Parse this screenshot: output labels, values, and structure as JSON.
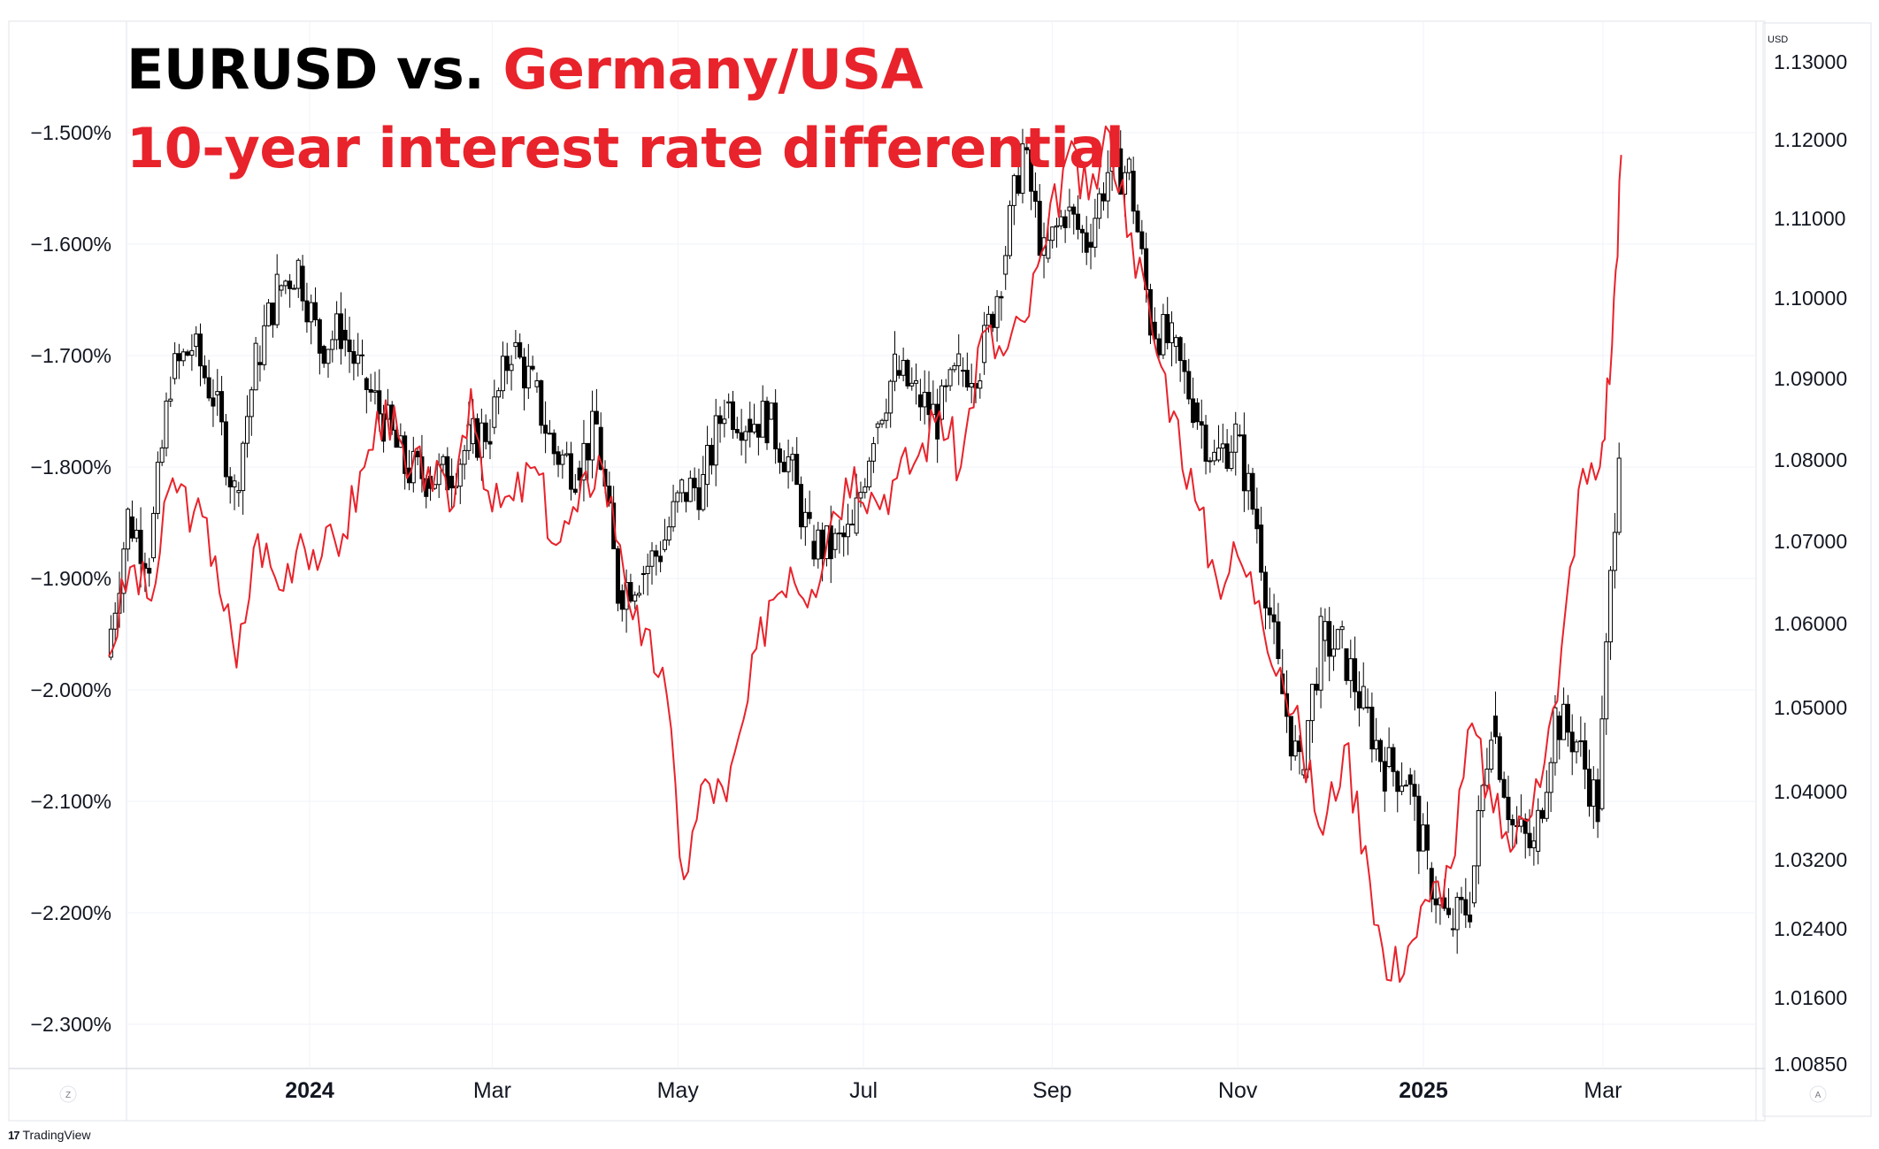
{
  "title": {
    "part1": "EURUSD vs. ",
    "part2": "Germany/USA",
    "line2": "10-year interest rate differential"
  },
  "brand": "TradingView",
  "chart_data": {
    "type": "line",
    "currency_label": "USD",
    "corner_labels": {
      "left": "Z",
      "right": "A"
    },
    "x_ticks": [
      {
        "label": "2024",
        "date": "2024-01-01",
        "bold": true
      },
      {
        "label": "Mar",
        "date": "2024-03-01",
        "bold": false
      },
      {
        "label": "May",
        "date": "2024-05-01",
        "bold": false
      },
      {
        "label": "Jul",
        "date": "2024-07-01",
        "bold": false
      },
      {
        "label": "Sep",
        "date": "2024-09-01",
        "bold": false
      },
      {
        "label": "Nov",
        "date": "2024-11-01",
        "bold": false
      },
      {
        "label": "2025",
        "date": "2025-01-01",
        "bold": true
      },
      {
        "label": "Mar",
        "date": "2025-03-01",
        "bold": false
      }
    ],
    "left_axis": {
      "ticks": [
        "−1.500%",
        "−1.600%",
        "−1.700%",
        "−1.800%",
        "−1.900%",
        "−2.000%",
        "−2.100%",
        "−2.200%",
        "−2.300%"
      ],
      "values": [
        -1.5,
        -1.6,
        -1.7,
        -1.8,
        -1.9,
        -2.0,
        -2.1,
        -2.2,
        -2.3
      ]
    },
    "right_axis": {
      "ticks": [
        "1.13000",
        "1.12000",
        "1.11000",
        "1.10000",
        "1.09000",
        "1.08000",
        "1.07000",
        "1.06000",
        "1.05000",
        "1.04000",
        "1.03200",
        "1.02400",
        "1.01600",
        "1.00850"
      ],
      "values": [
        1.13,
        1.12,
        1.11,
        1.1,
        1.09,
        1.08,
        1.07,
        1.06,
        1.05,
        1.04,
        1.032,
        1.024,
        1.016,
        1.0085
      ]
    },
    "series": [
      {
        "axis": "right",
        "style": "candlestick",
        "color": "#000000",
        "points": [
          [
            "2023-10-27",
            1.056
          ],
          [
            "2023-11-03",
            1.073
          ],
          [
            "2023-11-10",
            1.068
          ],
          [
            "2023-11-17",
            1.09
          ],
          [
            "2023-11-24",
            1.094
          ],
          [
            "2023-12-01",
            1.088
          ],
          [
            "2023-12-08",
            1.076
          ],
          [
            "2023-12-15",
            1.092
          ],
          [
            "2023-12-22",
            1.101
          ],
          [
            "2023-12-29",
            1.104
          ],
          [
            "2024-01-05",
            1.094
          ],
          [
            "2024-01-12",
            1.096
          ],
          [
            "2024-01-19",
            1.09
          ],
          [
            "2024-01-26",
            1.085
          ],
          [
            "2024-02-02",
            1.079
          ],
          [
            "2024-02-09",
            1.078
          ],
          [
            "2024-02-16",
            1.078
          ],
          [
            "2024-02-23",
            1.082
          ],
          [
            "2024-03-01",
            1.084
          ],
          [
            "2024-03-08",
            1.094
          ],
          [
            "2024-03-15",
            1.089
          ],
          [
            "2024-03-22",
            1.081
          ],
          [
            "2024-03-29",
            1.079
          ],
          [
            "2024-04-05",
            1.084
          ],
          [
            "2024-04-12",
            1.064
          ],
          [
            "2024-04-19",
            1.066
          ],
          [
            "2024-04-26",
            1.069
          ],
          [
            "2024-05-03",
            1.076
          ],
          [
            "2024-05-10",
            1.077
          ],
          [
            "2024-05-17",
            1.087
          ],
          [
            "2024-05-24",
            1.085
          ],
          [
            "2024-05-31",
            1.085
          ],
          [
            "2024-06-07",
            1.08
          ],
          [
            "2024-06-14",
            1.07
          ],
          [
            "2024-06-21",
            1.069
          ],
          [
            "2024-06-28",
            1.071
          ],
          [
            "2024-07-05",
            1.084
          ],
          [
            "2024-07-12",
            1.091
          ],
          [
            "2024-07-19",
            1.088
          ],
          [
            "2024-07-26",
            1.085
          ],
          [
            "2024-08-02",
            1.091
          ],
          [
            "2024-08-09",
            1.092
          ],
          [
            "2024-08-16",
            1.103
          ],
          [
            "2024-08-23",
            1.119
          ],
          [
            "2024-08-30",
            1.105
          ],
          [
            "2024-09-06",
            1.111
          ],
          [
            "2024-09-13",
            1.107
          ],
          [
            "2024-09-20",
            1.116
          ],
          [
            "2024-09-27",
            1.116
          ],
          [
            "2024-10-04",
            1.097
          ],
          [
            "2024-10-11",
            1.094
          ],
          [
            "2024-10-18",
            1.087
          ],
          [
            "2024-10-25",
            1.08
          ],
          [
            "2024-11-01",
            1.083
          ],
          [
            "2024-11-08",
            1.072
          ],
          [
            "2024-11-15",
            1.054
          ],
          [
            "2024-11-22",
            1.042
          ],
          [
            "2024-11-29",
            1.058
          ],
          [
            "2024-12-06",
            1.057
          ],
          [
            "2024-12-13",
            1.05
          ],
          [
            "2024-12-20",
            1.043
          ],
          [
            "2024-12-27",
            1.042
          ],
          [
            "2025-01-03",
            1.031
          ],
          [
            "2025-01-10",
            1.024
          ],
          [
            "2025-01-17",
            1.027
          ],
          [
            "2025-01-24",
            1.049
          ],
          [
            "2025-01-31",
            1.036
          ],
          [
            "2025-02-07",
            1.033
          ],
          [
            "2025-02-14",
            1.049
          ],
          [
            "2025-02-21",
            1.046
          ],
          [
            "2025-02-28",
            1.038
          ],
          [
            "2025-03-07",
            1.083
          ]
        ]
      },
      {
        "axis": "left",
        "style": "line",
        "color": "#e8232b",
        "points": [
          [
            "2023-10-27",
            -1.97
          ],
          [
            "2023-11-03",
            -1.89
          ],
          [
            "2023-11-10",
            -1.92
          ],
          [
            "2023-11-17",
            -1.81
          ],
          [
            "2023-11-24",
            -1.84
          ],
          [
            "2023-12-01",
            -1.88
          ],
          [
            "2023-12-08",
            -1.98
          ],
          [
            "2023-12-15",
            -1.86
          ],
          [
            "2023-12-22",
            -1.91
          ],
          [
            "2023-12-29",
            -1.86
          ],
          [
            "2024-01-05",
            -1.88
          ],
          [
            "2024-01-12",
            -1.86
          ],
          [
            "2024-01-19",
            -1.8
          ],
          [
            "2024-01-26",
            -1.74
          ],
          [
            "2024-02-02",
            -1.81
          ],
          [
            "2024-02-09",
            -1.8
          ],
          [
            "2024-02-16",
            -1.84
          ],
          [
            "2024-02-23",
            -1.73
          ],
          [
            "2024-03-01",
            -1.84
          ],
          [
            "2024-03-08",
            -1.83
          ],
          [
            "2024-03-15",
            -1.8
          ],
          [
            "2024-03-22",
            -1.87
          ],
          [
            "2024-03-29",
            -1.84
          ],
          [
            "2024-04-05",
            -1.79
          ],
          [
            "2024-04-12",
            -1.87
          ],
          [
            "2024-04-19",
            -1.96
          ],
          [
            "2024-04-26",
            -1.98
          ],
          [
            "2024-05-03",
            -2.17
          ],
          [
            "2024-05-10",
            -2.08
          ],
          [
            "2024-05-17",
            -2.1
          ],
          [
            "2024-05-24",
            -2.01
          ],
          [
            "2024-05-31",
            -1.92
          ],
          [
            "2024-06-07",
            -1.89
          ],
          [
            "2024-06-14",
            -1.91
          ],
          [
            "2024-06-21",
            -1.84
          ],
          [
            "2024-06-28",
            -1.8
          ],
          [
            "2024-07-05",
            -1.83
          ],
          [
            "2024-07-12",
            -1.81
          ],
          [
            "2024-07-19",
            -1.79
          ],
          [
            "2024-07-26",
            -1.75
          ],
          [
            "2024-08-02",
            -1.8
          ],
          [
            "2024-08-09",
            -1.68
          ],
          [
            "2024-08-16",
            -1.7
          ],
          [
            "2024-08-23",
            -1.67
          ],
          [
            "2024-08-30",
            -1.6
          ],
          [
            "2024-09-06",
            -1.52
          ],
          [
            "2024-09-13",
            -1.56
          ],
          [
            "2024-09-20",
            -1.5
          ],
          [
            "2024-09-27",
            -1.59
          ],
          [
            "2024-10-04",
            -1.68
          ],
          [
            "2024-10-11",
            -1.75
          ],
          [
            "2024-10-18",
            -1.83
          ],
          [
            "2024-10-25",
            -1.9
          ],
          [
            "2024-11-01",
            -1.88
          ],
          [
            "2024-11-08",
            -1.92
          ],
          [
            "2024-11-15",
            -1.98
          ],
          [
            "2024-11-22",
            -2.05
          ],
          [
            "2024-11-29",
            -2.13
          ],
          [
            "2024-12-06",
            -2.05
          ],
          [
            "2024-12-13",
            -2.14
          ],
          [
            "2024-12-20",
            -2.26
          ],
          [
            "2024-12-27",
            -2.23
          ],
          [
            "2025-01-03",
            -2.19
          ],
          [
            "2025-01-10",
            -2.16
          ],
          [
            "2025-01-17",
            -2.03
          ],
          [
            "2025-01-24",
            -2.11
          ],
          [
            "2025-01-31",
            -2.14
          ],
          [
            "2025-02-07",
            -2.08
          ],
          [
            "2025-02-14",
            -2.01
          ],
          [
            "2025-02-21",
            -1.82
          ],
          [
            "2025-02-28",
            -1.8
          ],
          [
            "2025-03-04",
            -1.69
          ],
          [
            "2025-03-07",
            -1.52
          ]
        ]
      }
    ],
    "grid": true
  }
}
